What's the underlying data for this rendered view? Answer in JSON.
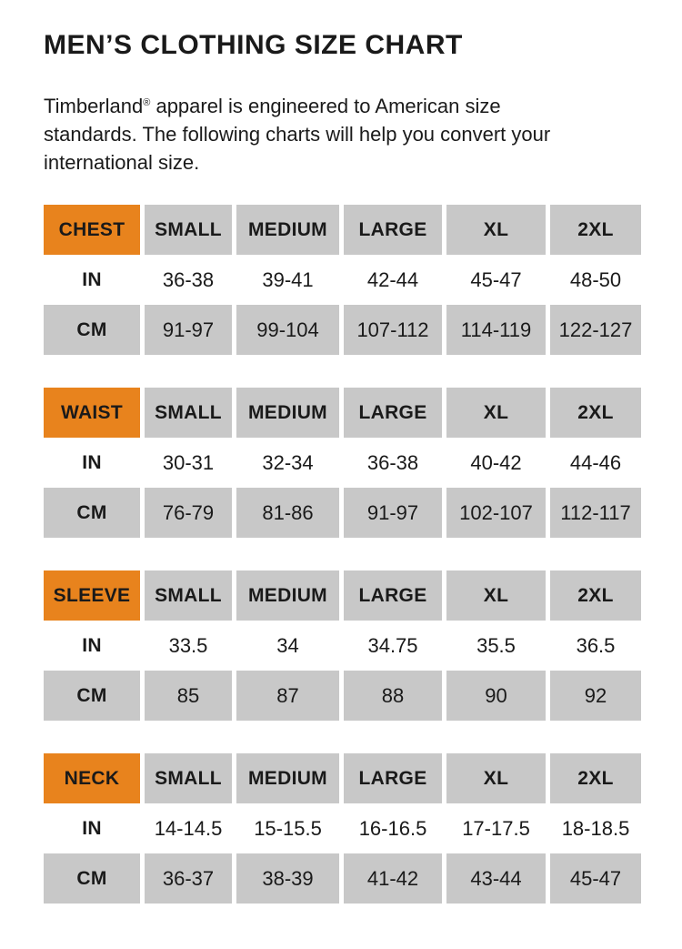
{
  "page": {
    "title": "MEN’S CLOTHING SIZE CHART"
  },
  "intro": {
    "brand": "Timberland",
    "reg_mark": "®",
    "line1_rest": " apparel is engineered to American size",
    "line2": "standards. The following charts will help you convert your",
    "line3": "international size."
  },
  "colors": {
    "accent_orange": "#e8831d",
    "cell_gray": "#c8c8c8",
    "text": "#1a1a1a",
    "background": "#ffffff"
  },
  "size_columns": [
    "SMALL",
    "MEDIUM",
    "LARGE",
    "XL",
    "2XL"
  ],
  "units": {
    "inches": "IN",
    "centimeters": "CM"
  },
  "tables": [
    {
      "label": "CHEST",
      "in": [
        "36-38",
        "39-41",
        "42-44",
        "45-47",
        "48-50"
      ],
      "cm": [
        "91-97",
        "99-104",
        "107-112",
        "114-119",
        "122-127"
      ]
    },
    {
      "label": "WAIST",
      "in": [
        "30-31",
        "32-34",
        "36-38",
        "40-42",
        "44-46"
      ],
      "cm": [
        "76-79",
        "81-86",
        "91-97",
        "102-107",
        "112-117"
      ]
    },
    {
      "label": "SLEEVE",
      "in": [
        "33.5",
        "34",
        "34.75",
        "35.5",
        "36.5"
      ],
      "cm": [
        "85",
        "87",
        "88",
        "90",
        "92"
      ]
    },
    {
      "label": "NECK",
      "in": [
        "14-14.5",
        "15-15.5",
        "16-16.5",
        "17-17.5",
        "18-18.5"
      ],
      "cm": [
        "36-37",
        "38-39",
        "41-42",
        "43-44",
        "45-47"
      ]
    }
  ]
}
